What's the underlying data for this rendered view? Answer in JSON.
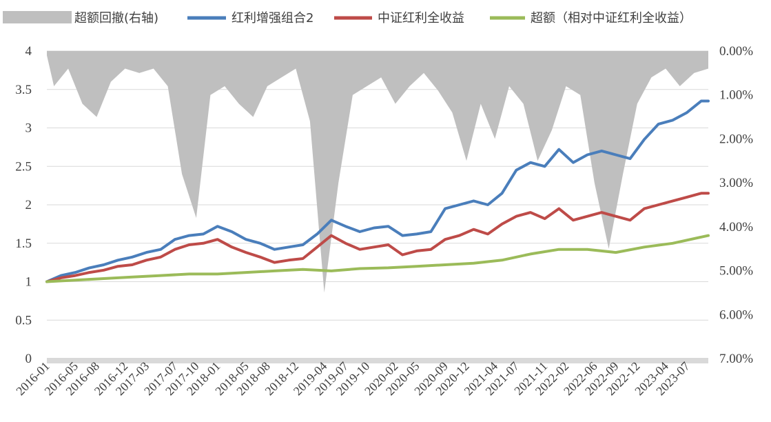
{
  "chart_data": {
    "type": "line",
    "title": "",
    "xlabel": "",
    "ylabel": "",
    "legend_position": "top",
    "grid": "horizontal",
    "x_tick_labels": [
      "2016-01",
      "2016-05",
      "2016-08",
      "2016-12",
      "2017-03",
      "2017-07",
      "2017-10",
      "2018-01",
      "2018-05",
      "2018-08",
      "2018-12",
      "2019-04",
      "2019-07",
      "2019-10",
      "2020-02",
      "2020-05",
      "2020-09",
      "2020-12",
      "2021-04",
      "2021-07",
      "2021-11",
      "2022-02",
      "2022-06",
      "2022-09",
      "2022-12",
      "2023-04",
      "2023-07"
    ],
    "x_range": [
      "2016-01",
      "2023-10"
    ],
    "y_left": {
      "min": 0,
      "max": 4,
      "step": 0.5,
      "tick_labels": [
        "0",
        "0.5",
        "1",
        "1.5",
        "2",
        "2.5",
        "3",
        "3.5",
        "4"
      ]
    },
    "y_right": {
      "min": 0,
      "max": 0.07,
      "inverted": true,
      "tick_labels": [
        "0.00%",
        "1.00%",
        "2.00%",
        "3.00%",
        "4.00%",
        "5.00%",
        "6.00%",
        "7.00%"
      ]
    },
    "series": [
      {
        "name": "超额回撤(右轴)",
        "kind": "area",
        "axis": "right",
        "color": "#BFBFBF",
        "x": [
          "2016-01",
          "2016-02",
          "2016-04",
          "2016-06",
          "2016-08",
          "2016-10",
          "2016-12",
          "2017-02",
          "2017-04",
          "2017-06",
          "2017-08",
          "2017-10",
          "2017-12",
          "2018-02",
          "2018-04",
          "2018-06",
          "2018-08",
          "2018-10",
          "2018-12",
          "2019-02",
          "2019-04",
          "2019-06",
          "2019-08",
          "2019-10",
          "2019-12",
          "2020-02",
          "2020-04",
          "2020-06",
          "2020-08",
          "2020-10",
          "2020-12",
          "2021-02",
          "2021-04",
          "2021-06",
          "2021-08",
          "2021-10",
          "2021-12",
          "2022-02",
          "2022-04",
          "2022-06",
          "2022-08",
          "2022-10",
          "2022-12",
          "2023-02",
          "2023-04",
          "2023-06",
          "2023-08",
          "2023-10"
        ],
        "values": [
          0.001,
          0.008,
          0.004,
          0.012,
          0.015,
          0.007,
          0.004,
          0.005,
          0.004,
          0.008,
          0.028,
          0.038,
          0.01,
          0.008,
          0.012,
          0.015,
          0.008,
          0.006,
          0.004,
          0.016,
          0.055,
          0.03,
          0.01,
          0.008,
          0.006,
          0.012,
          0.008,
          0.005,
          0.009,
          0.014,
          0.025,
          0.012,
          0.02,
          0.008,
          0.012,
          0.025,
          0.018,
          0.008,
          0.01,
          0.03,
          0.045,
          0.028,
          0.012,
          0.006,
          0.004,
          0.008,
          0.005,
          0.004
        ]
      },
      {
        "name": "红利增强组合2",
        "kind": "line",
        "axis": "left",
        "color": "#4A7EBB",
        "x": [
          "2016-01",
          "2016-03",
          "2016-05",
          "2016-07",
          "2016-09",
          "2016-11",
          "2017-01",
          "2017-03",
          "2017-05",
          "2017-07",
          "2017-09",
          "2017-11",
          "2018-01",
          "2018-03",
          "2018-05",
          "2018-07",
          "2018-09",
          "2018-11",
          "2019-01",
          "2019-03",
          "2019-05",
          "2019-07",
          "2019-09",
          "2019-11",
          "2020-01",
          "2020-03",
          "2020-05",
          "2020-07",
          "2020-09",
          "2020-11",
          "2021-01",
          "2021-03",
          "2021-05",
          "2021-07",
          "2021-09",
          "2021-11",
          "2022-01",
          "2022-03",
          "2022-05",
          "2022-07",
          "2022-09",
          "2022-11",
          "2023-01",
          "2023-03",
          "2023-05",
          "2023-07",
          "2023-09",
          "2023-10"
        ],
        "values": [
          1.0,
          1.08,
          1.12,
          1.18,
          1.22,
          1.28,
          1.32,
          1.38,
          1.42,
          1.55,
          1.6,
          1.62,
          1.72,
          1.65,
          1.55,
          1.5,
          1.42,
          1.45,
          1.48,
          1.62,
          1.8,
          1.72,
          1.65,
          1.7,
          1.72,
          1.6,
          1.62,
          1.65,
          1.95,
          2.0,
          2.05,
          2.0,
          2.15,
          2.45,
          2.55,
          2.5,
          2.72,
          2.55,
          2.65,
          2.7,
          2.65,
          2.6,
          2.85,
          3.05,
          3.1,
          3.2,
          3.35,
          3.35
        ]
      },
      {
        "name": "中证红利全收益",
        "kind": "line",
        "axis": "left",
        "color": "#BE4B48",
        "x": [
          "2016-01",
          "2016-03",
          "2016-05",
          "2016-07",
          "2016-09",
          "2016-11",
          "2017-01",
          "2017-03",
          "2017-05",
          "2017-07",
          "2017-09",
          "2017-11",
          "2018-01",
          "2018-03",
          "2018-05",
          "2018-07",
          "2018-09",
          "2018-11",
          "2019-01",
          "2019-03",
          "2019-05",
          "2019-07",
          "2019-09",
          "2019-11",
          "2020-01",
          "2020-03",
          "2020-05",
          "2020-07",
          "2020-09",
          "2020-11",
          "2021-01",
          "2021-03",
          "2021-05",
          "2021-07",
          "2021-09",
          "2021-11",
          "2022-01",
          "2022-03",
          "2022-05",
          "2022-07",
          "2022-09",
          "2022-11",
          "2023-01",
          "2023-03",
          "2023-05",
          "2023-07",
          "2023-09",
          "2023-10"
        ],
        "values": [
          1.0,
          1.05,
          1.08,
          1.12,
          1.15,
          1.2,
          1.22,
          1.28,
          1.32,
          1.42,
          1.48,
          1.5,
          1.55,
          1.45,
          1.38,
          1.32,
          1.25,
          1.28,
          1.3,
          1.45,
          1.6,
          1.5,
          1.42,
          1.45,
          1.48,
          1.35,
          1.4,
          1.42,
          1.55,
          1.6,
          1.68,
          1.62,
          1.75,
          1.85,
          1.9,
          1.82,
          1.95,
          1.8,
          1.85,
          1.9,
          1.85,
          1.8,
          1.95,
          2.0,
          2.05,
          2.1,
          2.15,
          2.15
        ]
      },
      {
        "name": "超额（相对中证红利全收益）",
        "kind": "line",
        "axis": "left",
        "color": "#9BBB59",
        "x": [
          "2016-01",
          "2016-05",
          "2016-09",
          "2017-01",
          "2017-05",
          "2017-09",
          "2018-01",
          "2018-05",
          "2018-09",
          "2019-01",
          "2019-05",
          "2019-09",
          "2020-01",
          "2020-05",
          "2020-09",
          "2021-01",
          "2021-05",
          "2021-09",
          "2022-01",
          "2022-05",
          "2022-09",
          "2023-01",
          "2023-05",
          "2023-09",
          "2023-10"
        ],
        "values": [
          1.0,
          1.02,
          1.04,
          1.06,
          1.08,
          1.1,
          1.1,
          1.12,
          1.14,
          1.16,
          1.14,
          1.17,
          1.18,
          1.2,
          1.22,
          1.24,
          1.28,
          1.36,
          1.42,
          1.42,
          1.38,
          1.45,
          1.5,
          1.58,
          1.6
        ]
      }
    ]
  }
}
